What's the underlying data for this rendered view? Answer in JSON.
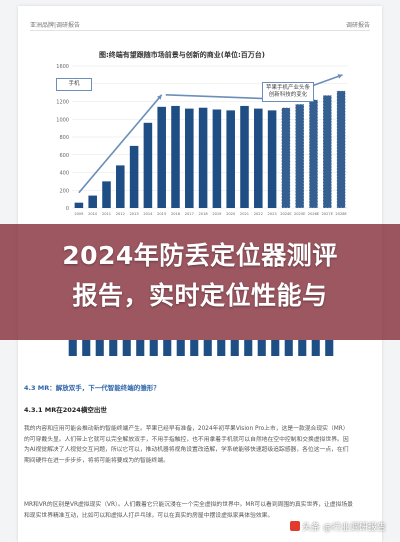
{
  "document": {
    "header_left": "亚洲品牌|调研报告",
    "header_right": "调研报告"
  },
  "chart_data": {
    "type": "bar",
    "title": "图:终端有望跟随市场前景与创新的商业(单位:百万台)",
    "y_ticks": [
      "1600",
      "1400",
      "1200",
      "1000",
      "800",
      "600",
      "400",
      "200",
      "0"
    ],
    "ylim": [
      0,
      1600
    ],
    "categories": [
      "2009",
      "2010",
      "2011",
      "2012",
      "2013",
      "2014",
      "2015",
      "2016",
      "2017",
      "2018",
      "2019",
      "2020",
      "2021",
      "2022",
      "2023",
      "2024E",
      "2025E",
      "2026E",
      "2027E",
      "2028E"
    ],
    "values": [
      60,
      140,
      300,
      480,
      700,
      960,
      1140,
      1150,
      1120,
      1130,
      1110,
      1100,
      1150,
      1120,
      1100,
      1130,
      1170,
      1220,
      1270,
      1320
    ],
    "forecast_start_index": 15,
    "callouts": {
      "left": "手机",
      "right": "苹果手机产业头条创新科技的变化"
    },
    "colors": {
      "bar": "#1f4e85",
      "forecast": "#1f4e85",
      "arrow": "#6b8fb8"
    }
  },
  "headline": {
    "line1": "2024年防丢定位器测评",
    "line2": "报告，实时定位性能与"
  },
  "section": {
    "h1": "4.3 MR：解放双手，下一代智能终端的雏形？",
    "h2": "4.3.1 MR在2024横空出世",
    "p1": "我的内容和应用可能会推动新的智能终端产生。苹果已经早有准备，2024年初苹果Vision Pro上市，这是一款混合现实（MR）的可穿戴头显。人们带上它就可以完全解放双手，不用手指触控，也不用拿着手机就可以自然地在空中控制和交换虚拟世界。因为AI视觉解决了人视觉交互问题，所以它可以，推动机器将视角设置改造解，学系统能够快速超级追踪感器，各位这一点，在们期间硬件在进一步步步，将将可能将要成为的智能终端。",
    "p2": "MR和VR的区别是VR虚拟现实（VR）。人们戴着它只能沉浸在一个完全虚拟的世界中。MR可以看到周围的真实世界，让虚拟场景和现实世界精准互动，比如可以和虚拟人打乒乓球，可以在真实的房屋中摆设虚拟家具体验效果。"
  },
  "watermark": "头条 @行业调研报告"
}
